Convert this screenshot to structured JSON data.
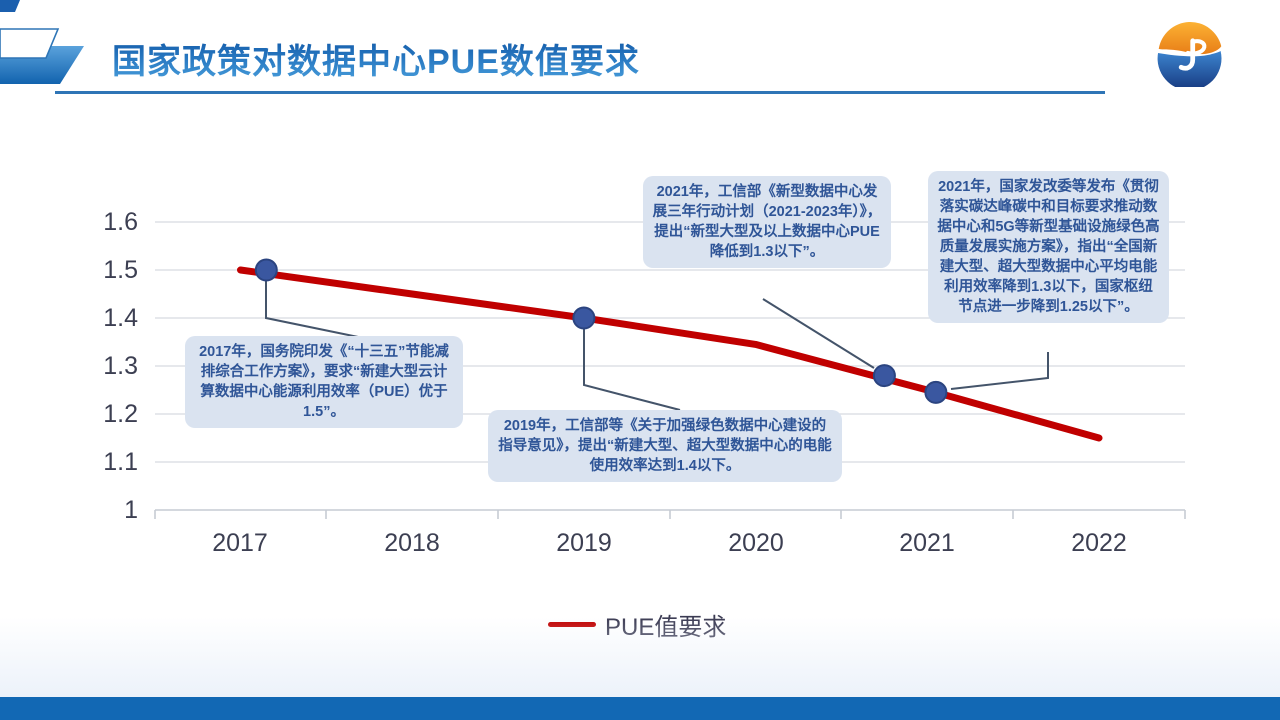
{
  "header": {
    "title": "国家政策对数据中心PUE数值要求"
  },
  "chart_data": {
    "type": "line",
    "title": "",
    "x_labels": [
      "2017",
      "2018",
      "2019",
      "2020",
      "2021",
      "2022"
    ],
    "ytick_labels": [
      "1.6",
      "1.5",
      "1.4",
      "1.3",
      "1.2",
      "1.1",
      "1"
    ],
    "ylim": [
      1.0,
      1.6
    ],
    "grid": true,
    "legend_position": "bottom",
    "series": [
      {
        "name": "PUE值要求",
        "color": "#c00000",
        "values": [
          1.5,
          1.45,
          1.4,
          1.345,
          1.25,
          1.15
        ]
      }
    ],
    "highlight_points": [
      {
        "year": 2017.15,
        "pue": 1.5
      },
      {
        "year": 2019.0,
        "pue": 1.4
      },
      {
        "year": 2020.75,
        "pue": 1.28
      },
      {
        "year": 2021.05,
        "pue": 1.245
      }
    ],
    "marker_color": "#3a57a0",
    "marker_edge_color": "#2b4480"
  },
  "annotations": [
    {
      "id": "2017",
      "text": "2017年，国务院印发《“十三五”节能减排综合工作方案》，要求“新建大型云计算数据中心能源利用效率（PUE）优于1.5”。"
    },
    {
      "id": "2019",
      "text": "2019年，工信部等《关于加强绿色数据中心建设的指导意见》，提出“新建大型、超大型数据中心的电能使用效率达到1.4以下。"
    },
    {
      "id": "2021-miit",
      "text": "2021年，工信部《新型数据中心发展三年行动计划（2021-2023年）》，提出“新型大型及以上数据中心PUE降低到1.3以下”。"
    },
    {
      "id": "2021-ndrc",
      "text": "2021年，国家发改委等发布《贯彻落实碳达峰碳中和目标要求推动数据中心和5G等新型基础设施绿色高质量发展实施方案》，指出“全国新建大型、超大型数据中心平均电能利用效率降到1.3以下，国家枢纽节点进一步降到1.25以下”。"
    }
  ],
  "legend": {
    "label": "PUE值要求",
    "color": "#c00000"
  },
  "colors": {
    "title_blue": "#1565b5",
    "underline": "#2e75b6",
    "footer_bar": "#1268b4",
    "callout_bg": "#dae3f0",
    "callout_text": "#2f5597",
    "leader": "#44546a",
    "grid": "#d6dae1",
    "axis_text": "#3c3f52"
  }
}
